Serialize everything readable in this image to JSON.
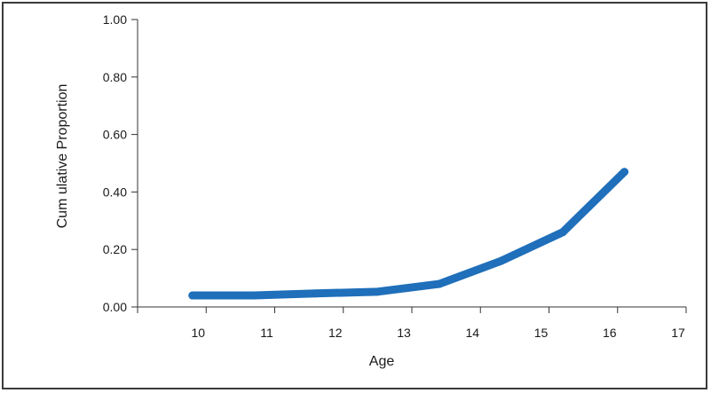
{
  "chart_data": {
    "type": "line",
    "title": "",
    "xlabel": "Age",
    "ylabel": "Cum ulative Proportion",
    "xlim": [
      9,
      17
    ],
    "ylim": [
      0,
      1
    ],
    "x_ticks": [
      "10",
      "11",
      "12",
      "13",
      "14",
      "15",
      "16",
      "17"
    ],
    "x_tick_values": [
      10,
      11,
      12,
      13,
      14,
      15,
      16,
      17
    ],
    "y_ticks": [
      "0.00",
      "0.20",
      "0.40",
      "0.60",
      "0.80",
      "1.00"
    ],
    "y_tick_values": [
      0,
      0.2,
      0.4,
      0.6,
      0.8,
      1.0
    ],
    "grid": false,
    "legend": "none",
    "series": [
      {
        "color": "#1f6fba",
        "x": [
          9.8,
          10.7,
          11.6,
          12.5,
          13.4,
          14.3,
          15.2,
          16.1
        ],
        "y": [
          0.04,
          0.04,
          0.047,
          0.053,
          0.08,
          0.16,
          0.26,
          0.47
        ]
      }
    ]
  }
}
